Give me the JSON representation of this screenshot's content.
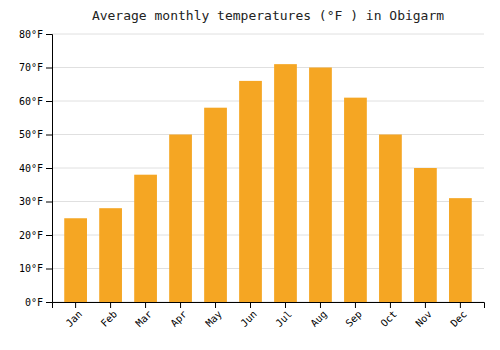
{
  "chart_data": {
    "type": "bar",
    "title": "Average monthly temperatures (°F ) in Obigarm",
    "categories": [
      "Jan",
      "Feb",
      "Mar",
      "Apr",
      "May",
      "Jun",
      "Jul",
      "Aug",
      "Sep",
      "Oct",
      "Nov",
      "Dec"
    ],
    "values": [
      25,
      28,
      38,
      50,
      58,
      66,
      71,
      70,
      61,
      50,
      40,
      31
    ],
    "color": "#F5A623",
    "ylim": [
      0,
      80
    ],
    "yticks": [
      {
        "value": 0,
        "label": "0°F"
      },
      {
        "value": 10,
        "label": "10°F"
      },
      {
        "value": 20,
        "label": "20°F"
      },
      {
        "value": 30,
        "label": "30°F"
      },
      {
        "value": 40,
        "label": "40°F"
      },
      {
        "value": 50,
        "label": "50°F"
      },
      {
        "value": 60,
        "label": "60°F"
      },
      {
        "value": 70,
        "label": "70°F"
      },
      {
        "value": 80,
        "label": "80°F"
      }
    ],
    "grid": true
  }
}
